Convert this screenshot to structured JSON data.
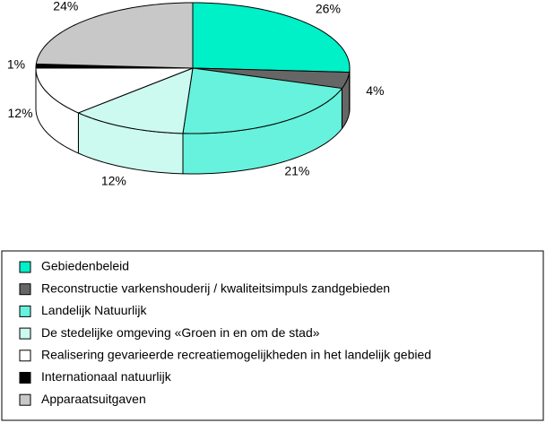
{
  "chart_data": {
    "type": "pie",
    "categories": [
      "Gebiedenbeleid",
      "Reconstructie varkenshouderij / kwaliteitsimpuls zandgebieden",
      "Landelijk Natuurlijk",
      "De stedelijke omgeving «Groen in en om de stad»",
      "Realisering gevarieerde recreatiemogelijkheden in het landelijk gebied",
      "Internationaal natuurlijk",
      "Apparaatsuitgaven"
    ],
    "values": [
      26,
      4,
      21,
      12,
      12,
      1,
      24
    ],
    "value_labels": [
      "26%",
      "4%",
      "21%",
      "12%",
      "12%",
      "1%",
      "24%"
    ],
    "colors": [
      "#00f0c8",
      "#666666",
      "#66f2dc",
      "#ccfaf0",
      "#ffffff",
      "#000000",
      "#c8c8c8"
    ]
  }
}
